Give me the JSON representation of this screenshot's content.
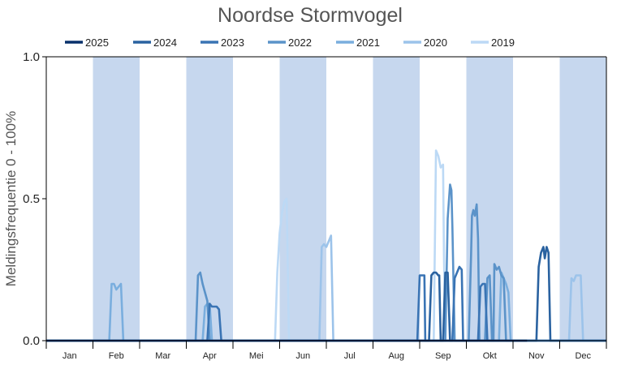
{
  "chart_data": {
    "type": "line",
    "title": "Noordse Stormvogel",
    "ylabel": "Meldingsfrequentie 0 - 100%",
    "xlabel": "",
    "ylim": [
      0,
      1
    ],
    "yticks": [
      "0.0",
      "0.5",
      "1.0"
    ],
    "months": [
      "Jan",
      "Feb",
      "Mar",
      "Apr",
      "Mei",
      "Jun",
      "Jul",
      "Aug",
      "Sep",
      "Okt",
      "Nov",
      "Dec"
    ],
    "shaded_months": [
      "Feb",
      "Apr",
      "Jun",
      "Aug",
      "Okt",
      "Dec"
    ],
    "colors": {
      "shade": "#c6d7ee",
      "axis": "#000000"
    },
    "legend_position": "top",
    "series": [
      {
        "name": "2025",
        "color": "#08306b",
        "points": [
          [
            0,
            0
          ],
          [
            10.3,
            0
          ]
        ]
      },
      {
        "name": "2024",
        "color": "#2a62a0",
        "points": [
          [
            0,
            0
          ],
          [
            8.2,
            0
          ],
          [
            8.25,
            0.23
          ],
          [
            8.3,
            0.24
          ],
          [
            8.35,
            0.24
          ],
          [
            8.4,
            0.23
          ],
          [
            8.42,
            0.23
          ],
          [
            8.45,
            0
          ],
          [
            8.5,
            0
          ],
          [
            8.55,
            0.24
          ],
          [
            8.6,
            0.24
          ],
          [
            8.65,
            0
          ],
          [
            10.5,
            0
          ],
          [
            10.55,
            0.26
          ],
          [
            10.6,
            0.31
          ],
          [
            10.65,
            0.33
          ],
          [
            10.68,
            0.29
          ],
          [
            10.72,
            0.33
          ],
          [
            10.76,
            0.31
          ],
          [
            10.8,
            0
          ],
          [
            12,
            0
          ]
        ]
      },
      {
        "name": "2023",
        "color": "#3a74b4",
        "points": [
          [
            0,
            0
          ],
          [
            3.45,
            0
          ],
          [
            3.5,
            0.13
          ],
          [
            3.55,
            0.12
          ],
          [
            3.6,
            0.12
          ],
          [
            3.65,
            0.12
          ],
          [
            3.7,
            0.11
          ],
          [
            3.75,
            0
          ],
          [
            7.95,
            0
          ],
          [
            8.0,
            0.23
          ],
          [
            8.05,
            0.23
          ],
          [
            8.1,
            0.23
          ],
          [
            8.12,
            0
          ],
          [
            8.7,
            0
          ],
          [
            8.75,
            0.22
          ],
          [
            8.8,
            0.24
          ],
          [
            8.85,
            0.26
          ],
          [
            8.9,
            0.25
          ],
          [
            8.93,
            0
          ],
          [
            9.25,
            0
          ],
          [
            9.3,
            0.19
          ],
          [
            9.35,
            0.2
          ],
          [
            9.4,
            0.2
          ],
          [
            9.45,
            0
          ],
          [
            12,
            0
          ]
        ]
      },
      {
        "name": "2022",
        "color": "#5b93c9",
        "points": [
          [
            0,
            0
          ],
          [
            3.2,
            0
          ],
          [
            3.25,
            0.23
          ],
          [
            3.3,
            0.24
          ],
          [
            3.35,
            0.2
          ],
          [
            3.4,
            0.17
          ],
          [
            3.45,
            0.14
          ],
          [
            3.5,
            0
          ],
          [
            8.55,
            0
          ],
          [
            8.6,
            0.43
          ],
          [
            8.65,
            0.55
          ],
          [
            8.68,
            0.53
          ],
          [
            8.7,
            0.4
          ],
          [
            8.75,
            0
          ],
          [
            9.05,
            0
          ],
          [
            9.1,
            0.3
          ],
          [
            9.12,
            0.44
          ],
          [
            9.15,
            0.46
          ],
          [
            9.18,
            0.44
          ],
          [
            9.22,
            0.48
          ],
          [
            9.25,
            0.36
          ],
          [
            9.28,
            0
          ],
          [
            9.4,
            0
          ],
          [
            9.45,
            0.22
          ],
          [
            9.5,
            0.23
          ],
          [
            9.55,
            0
          ],
          [
            9.58,
            0
          ],
          [
            9.6,
            0.27
          ],
          [
            9.65,
            0.25
          ],
          [
            9.7,
            0.26
          ],
          [
            9.75,
            0.23
          ],
          [
            9.8,
            0.22
          ],
          [
            9.85,
            0
          ],
          [
            12,
            0
          ]
        ]
      },
      {
        "name": "2021",
        "color": "#7aaede",
        "points": [
          [
            0,
            0
          ],
          [
            1.35,
            0
          ],
          [
            1.4,
            0.2
          ],
          [
            1.45,
            0.2
          ],
          [
            1.5,
            0.18
          ],
          [
            1.55,
            0.19
          ],
          [
            1.6,
            0.2
          ],
          [
            1.65,
            0
          ],
          [
            3.35,
            0
          ],
          [
            3.4,
            0.12
          ],
          [
            3.45,
            0.13
          ],
          [
            3.5,
            0.13
          ],
          [
            3.55,
            0
          ],
          [
            9.7,
            0
          ],
          [
            9.75,
            0.24
          ],
          [
            9.8,
            0.22
          ],
          [
            9.85,
            0.2
          ],
          [
            9.9,
            0.17
          ],
          [
            9.95,
            0
          ],
          [
            12,
            0
          ]
        ]
      },
      {
        "name": "2020",
        "color": "#9cc3ea",
        "points": [
          [
            0,
            0
          ],
          [
            5.85,
            0
          ],
          [
            5.9,
            0.33
          ],
          [
            5.95,
            0.34
          ],
          [
            6.0,
            0.33
          ],
          [
            6.05,
            0.35
          ],
          [
            6.1,
            0.37
          ],
          [
            6.15,
            0
          ],
          [
            11.2,
            0
          ],
          [
            11.25,
            0.22
          ],
          [
            11.3,
            0.21
          ],
          [
            11.35,
            0.23
          ],
          [
            11.4,
            0.23
          ],
          [
            11.45,
            0.23
          ],
          [
            11.5,
            0
          ],
          [
            12,
            0
          ]
        ]
      },
      {
        "name": "2019",
        "color": "#bcd9f5",
        "points": [
          [
            0,
            0
          ],
          [
            4.9,
            0
          ],
          [
            4.95,
            0.24
          ],
          [
            5.0,
            0.38
          ],
          [
            5.05,
            0.45
          ],
          [
            5.1,
            0.49
          ],
          [
            5.15,
            0.5
          ],
          [
            5.2,
            0
          ],
          [
            8.3,
            0
          ],
          [
            8.35,
            0.67
          ],
          [
            8.4,
            0.65
          ],
          [
            8.45,
            0.61
          ],
          [
            8.5,
            0.62
          ],
          [
            8.52,
            0.3
          ],
          [
            8.55,
            0
          ],
          [
            12,
            0
          ]
        ]
      }
    ]
  }
}
